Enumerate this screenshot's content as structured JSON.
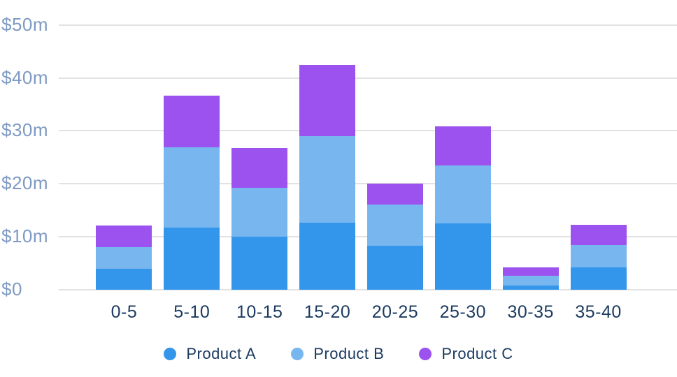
{
  "chart_data": {
    "type": "bar",
    "stacked": true,
    "title": "",
    "xlabel": "",
    "ylabel": "",
    "unit": "$m",
    "categories": [
      "0-5",
      "5-10",
      "10-15",
      "15-20",
      "20-25",
      "25-30",
      "30-35",
      "35-40"
    ],
    "series": [
      {
        "name": "Product A",
        "color": "#3396ea",
        "values": [
          3.9,
          11.7,
          10.0,
          12.7,
          8.3,
          12.5,
          0.8,
          4.2
        ]
      },
      {
        "name": "Product B",
        "color": "#78b6f0",
        "values": [
          4.2,
          15.2,
          9.2,
          16.3,
          7.8,
          11.0,
          1.8,
          4.2
        ]
      },
      {
        "name": "Product C",
        "color": "#9c52ee",
        "values": [
          4.0,
          9.7,
          7.6,
          13.4,
          3.9,
          7.3,
          1.6,
          3.9
        ]
      }
    ],
    "stack_totals": [
      12.1,
      36.6,
      26.8,
      42.4,
      20.0,
      30.8,
      4.2,
      12.3
    ],
    "y_axis": {
      "ticks": [
        0,
        10,
        20,
        30,
        40,
        50
      ],
      "tick_labels": [
        "$0",
        "$10m",
        "$20m",
        "$30m",
        "$40m",
        "$50m"
      ],
      "ylim": [
        0,
        50
      ]
    },
    "grid": "horizontal",
    "legend_position": "bottom"
  },
  "colors": {
    "background": "#ffffff",
    "gridline": "#e2e2e2",
    "y_tick_label": "#7e9ac3",
    "x_tick_label": "#1b3a5f",
    "legend_text": "#1b3a5f"
  }
}
